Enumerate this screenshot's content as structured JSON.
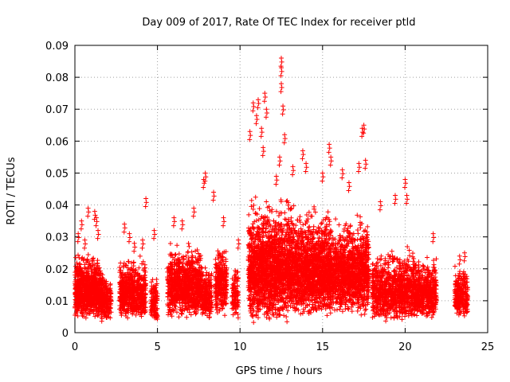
{
  "chart_data": {
    "type": "scatter",
    "title": "Day 009 of 2017, Rate Of TEC Index for receiver ptld",
    "xlabel": "GPS time / hours",
    "ylabel": "ROTI / TECUs",
    "xlim": [
      0,
      25
    ],
    "ylim": [
      0,
      0.09
    ],
    "xticks": [
      "0",
      "5",
      "10",
      "15",
      "20",
      "25"
    ],
    "yticks": [
      "0",
      "0.01",
      "0.02",
      "0.03",
      "0.04",
      "0.05",
      "0.06",
      "0.07",
      "0.08",
      "0.09"
    ],
    "grid": true,
    "marker": "+",
    "color": "#ff0000",
    "series": [
      {
        "clusters": [
          {
            "x": [
              0.0,
              1.6
            ],
            "y": [
              0.004,
              0.026
            ],
            "n": 900
          },
          {
            "x": [
              1.6,
              2.2
            ],
            "y": [
              0.003,
              0.02
            ],
            "n": 200
          },
          {
            "x": [
              2.7,
              4.3
            ],
            "y": [
              0.004,
              0.025
            ],
            "n": 650
          },
          {
            "x": [
              4.6,
              5.0
            ],
            "y": [
              0.003,
              0.019
            ],
            "n": 120
          },
          {
            "x": [
              5.6,
              7.7
            ],
            "y": [
              0.004,
              0.03
            ],
            "n": 900
          },
          {
            "x": [
              7.7,
              8.3
            ],
            "y": [
              0.004,
              0.022
            ],
            "n": 200
          },
          {
            "x": [
              8.5,
              9.2
            ],
            "y": [
              0.005,
              0.03
            ],
            "n": 280
          },
          {
            "x": [
              9.5,
              9.9
            ],
            "y": [
              0.004,
              0.022
            ],
            "n": 100
          },
          {
            "x": [
              10.5,
              13.0
            ],
            "y": [
              0.003,
              0.045
            ],
            "n": 1600
          },
          {
            "x": [
              13.0,
              15.5
            ],
            "y": [
              0.004,
              0.042
            ],
            "n": 1500
          },
          {
            "x": [
              15.5,
              17.8
            ],
            "y": [
              0.005,
              0.038
            ],
            "n": 1200
          },
          {
            "x": [
              18.0,
              20.7
            ],
            "y": [
              0.003,
              0.028
            ],
            "n": 1000
          },
          {
            "x": [
              20.7,
              21.9
            ],
            "y": [
              0.004,
              0.025
            ],
            "n": 450
          },
          {
            "x": [
              23.0,
              23.8
            ],
            "y": [
              0.004,
              0.022
            ],
            "n": 250
          }
        ],
        "outliers": [
          [
            0.2,
            0.031
          ],
          [
            0.4,
            0.035
          ],
          [
            0.6,
            0.029
          ],
          [
            0.8,
            0.039
          ],
          [
            1.2,
            0.038
          ],
          [
            1.3,
            0.036
          ],
          [
            1.4,
            0.032
          ],
          [
            3.0,
            0.034
          ],
          [
            3.3,
            0.031
          ],
          [
            3.6,
            0.028
          ],
          [
            4.1,
            0.029
          ],
          [
            4.3,
            0.042
          ],
          [
            4.8,
            0.032
          ],
          [
            6.0,
            0.036
          ],
          [
            6.5,
            0.035
          ],
          [
            7.2,
            0.039
          ],
          [
            7.8,
            0.048
          ],
          [
            7.9,
            0.05
          ],
          [
            8.4,
            0.044
          ],
          [
            9.0,
            0.036
          ],
          [
            9.9,
            0.029
          ],
          [
            10.6,
            0.063
          ],
          [
            10.8,
            0.072
          ],
          [
            11.0,
            0.068
          ],
          [
            11.1,
            0.073
          ],
          [
            11.3,
            0.064
          ],
          [
            11.5,
            0.075
          ],
          [
            11.6,
            0.07
          ],
          [
            11.4,
            0.058
          ],
          [
            12.5,
            0.086
          ],
          [
            12.5,
            0.083
          ],
          [
            12.5,
            0.078
          ],
          [
            12.6,
            0.071
          ],
          [
            12.7,
            0.062
          ],
          [
            12.4,
            0.055
          ],
          [
            12.2,
            0.049
          ],
          [
            13.2,
            0.052
          ],
          [
            13.8,
            0.057
          ],
          [
            14.0,
            0.053
          ],
          [
            15.0,
            0.05
          ],
          [
            15.4,
            0.059
          ],
          [
            15.5,
            0.055
          ],
          [
            16.2,
            0.051
          ],
          [
            16.6,
            0.047
          ],
          [
            17.2,
            0.053
          ],
          [
            17.4,
            0.064
          ],
          [
            17.5,
            0.065
          ],
          [
            17.6,
            0.054
          ],
          [
            18.5,
            0.041
          ],
          [
            19.4,
            0.043
          ],
          [
            20.0,
            0.048
          ],
          [
            20.1,
            0.043
          ],
          [
            21.7,
            0.031
          ],
          [
            23.3,
            0.024
          ],
          [
            23.6,
            0.025
          ]
        ]
      }
    ]
  }
}
